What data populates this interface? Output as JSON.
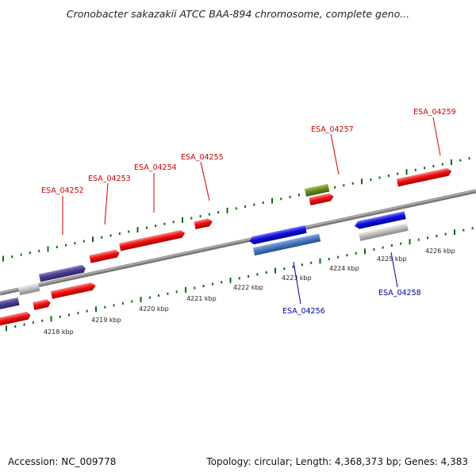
{
  "title": "Cronobacter sakazakii ATCC BAA-894 chromosome, complete geno...",
  "footer": {
    "accession": "Accession: NC_009778",
    "summary": "Topology: circular; Length: 4,368,373 bp; Genes: 4,383"
  },
  "colors": {
    "forward_gene": "#ee1111",
    "reverse_gene": "#1111dd",
    "purple_gene": "#4a3f8f",
    "gray_gene": "#bbbbbb",
    "green_gene": "#668822",
    "steel_gene": "#4477bb",
    "tick": "#116611",
    "backbone": "#8a8a8a",
    "label_red": "#cc0000",
    "label_blue": "#0000aa"
  },
  "scale_labels": [
    "4218 kbp",
    "4219 kbp",
    "4220 kbp",
    "4221 kbp",
    "4222 kbp",
    "4223 kbp",
    "4224 kbp",
    "4225 kbp",
    "4226 kbp"
  ],
  "gene_labels": [
    {
      "name": "ESA_04252",
      "strand": "forward"
    },
    {
      "name": "ESA_04253",
      "strand": "forward"
    },
    {
      "name": "ESA_04254",
      "strand": "forward"
    },
    {
      "name": "ESA_04255",
      "strand": "forward"
    },
    {
      "name": "ESA_04257",
      "strand": "forward"
    },
    {
      "name": "ESA_04259",
      "strand": "forward"
    },
    {
      "name": "ESA_04256",
      "strand": "reverse"
    },
    {
      "name": "ESA_04258",
      "strand": "reverse"
    }
  ]
}
